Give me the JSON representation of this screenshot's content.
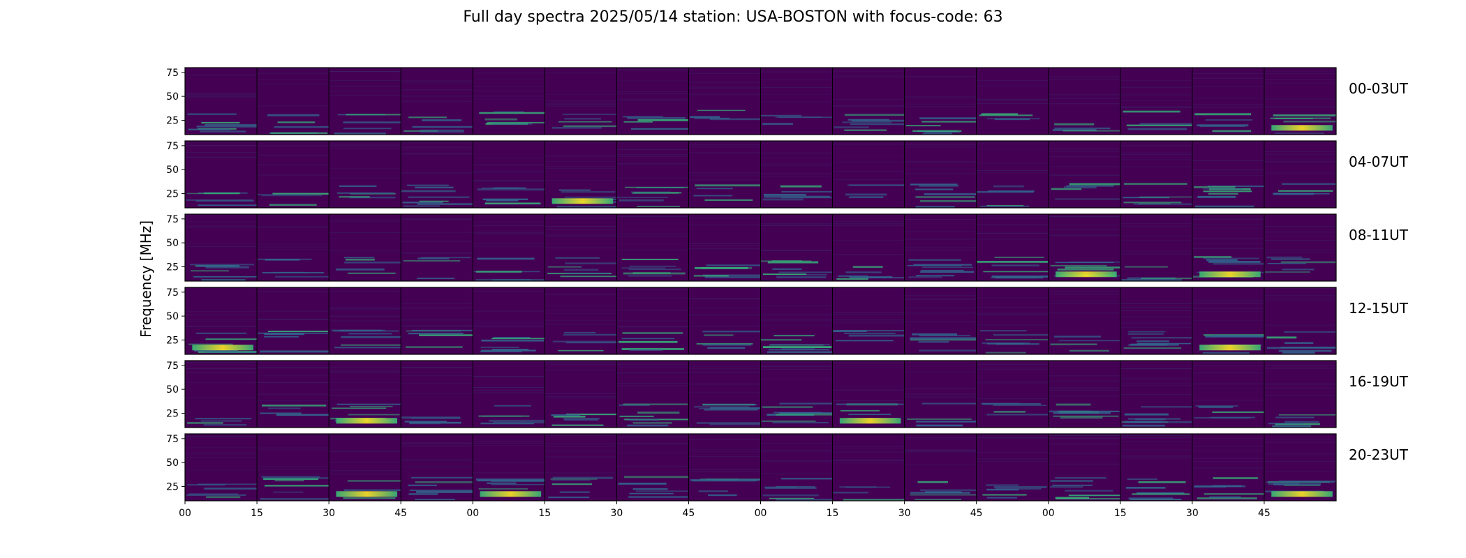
{
  "title": "Full day spectra 2025/05/14 station: USA-BOSTON with focus-code: 63",
  "chart_data": {
    "type": "heatmap",
    "title": "Full day spectra 2025/05/14 station: USA-BOSTON with focus-code: 63",
    "ylabel": "Frequency [MHz]",
    "xlabel": "",
    "colormap": "viridis",
    "y_ticks": [
      "25",
      "50",
      "75"
    ],
    "ylim": [
      10,
      80
    ],
    "x_ticks": [
      "00",
      "15",
      "30",
      "45",
      "00",
      "15",
      "30",
      "45",
      "00",
      "15",
      "30",
      "45",
      "00",
      "15",
      "30",
      "45"
    ],
    "rows": [
      {
        "label": "00-03UT",
        "bright_panels": [
          15
        ]
      },
      {
        "label": "04-07UT",
        "bright_panels": [
          5
        ]
      },
      {
        "label": "08-11UT",
        "bright_panels": [
          12,
          14
        ]
      },
      {
        "label": "12-15UT",
        "bright_panels": [
          0,
          14
        ]
      },
      {
        "label": "16-19UT",
        "bright_panels": [
          2,
          9
        ]
      },
      {
        "label": "20-23UT",
        "bright_panels": [
          2,
          4,
          15
        ]
      }
    ],
    "panels_per_row": 16,
    "grid": false
  },
  "colors": {
    "background": "#440154",
    "mid": "#31688e",
    "high": "#35b779",
    "peak": "#fde725"
  }
}
